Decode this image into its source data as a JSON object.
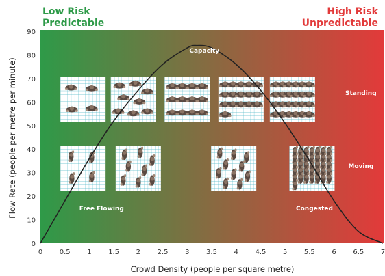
{
  "corners": {
    "low": {
      "line1": "Low Risk",
      "line2": "Predictable",
      "color": "#2e9a48"
    },
    "high": {
      "line1": "High Risk",
      "line2": "Unpredictable",
      "color": "#e23a3a"
    }
  },
  "chart_data": {
    "type": "line",
    "xlabel": "Crowd Density (people per square metre)",
    "ylabel": "Flow Rate (people per metre per minute)",
    "xlim": [
      0,
      7
    ],
    "ylim": [
      0,
      90
    ],
    "x_ticks": [
      "0",
      "0.5",
      "1",
      "1.5",
      "2",
      "2.5",
      "3",
      "3.5",
      "4",
      "4.5",
      "5",
      "5.5",
      "6",
      "6.5",
      "7"
    ],
    "y_ticks": [
      "0",
      "10",
      "20",
      "30",
      "40",
      "50",
      "60",
      "70",
      "80",
      "90"
    ],
    "grid": false,
    "background_gradient": [
      "#2e9a48",
      "#e23a3a"
    ],
    "series": [
      {
        "color": "#222222",
        "points": [
          [
            0,
            0
          ],
          [
            0.5,
            18
          ],
          [
            1,
            36
          ],
          [
            1.5,
            52
          ],
          [
            2,
            65
          ],
          [
            2.5,
            76
          ],
          [
            3,
            83
          ],
          [
            3.2,
            84
          ],
          [
            3.5,
            83
          ],
          [
            4,
            76
          ],
          [
            4.5,
            65
          ],
          [
            5,
            51
          ],
          [
            5.5,
            35
          ],
          [
            6,
            18
          ],
          [
            6.5,
            5
          ],
          [
            7,
            0
          ]
        ]
      }
    ],
    "annotations": [
      {
        "text": "Capacity",
        "x": 3.35,
        "y": 81
      },
      {
        "text": "Standing",
        "x": 6.55,
        "y": 63
      },
      {
        "text": "Moving",
        "x": 6.55,
        "y": 32
      },
      {
        "text": "Free Flowing",
        "x": 1.25,
        "y": 14
      },
      {
        "text": "Congested",
        "x": 5.6,
        "y": 14
      }
    ],
    "illustrations": {
      "standing_row": [
        {
          "density": 0.87,
          "people": 4
        },
        {
          "density": 1.9,
          "people": 8
        },
        {
          "density": 3.0,
          "people": 12
        },
        {
          "density": 4.1,
          "people": 16
        },
        {
          "density": 5.15,
          "people": 24
        }
      ],
      "moving_row": [
        {
          "density": 0.87,
          "people": 4
        },
        {
          "density": 2.0,
          "people": 8
        },
        {
          "density": 3.95,
          "people": 10
        },
        {
          "density": 5.55,
          "people": 36
        }
      ]
    }
  }
}
